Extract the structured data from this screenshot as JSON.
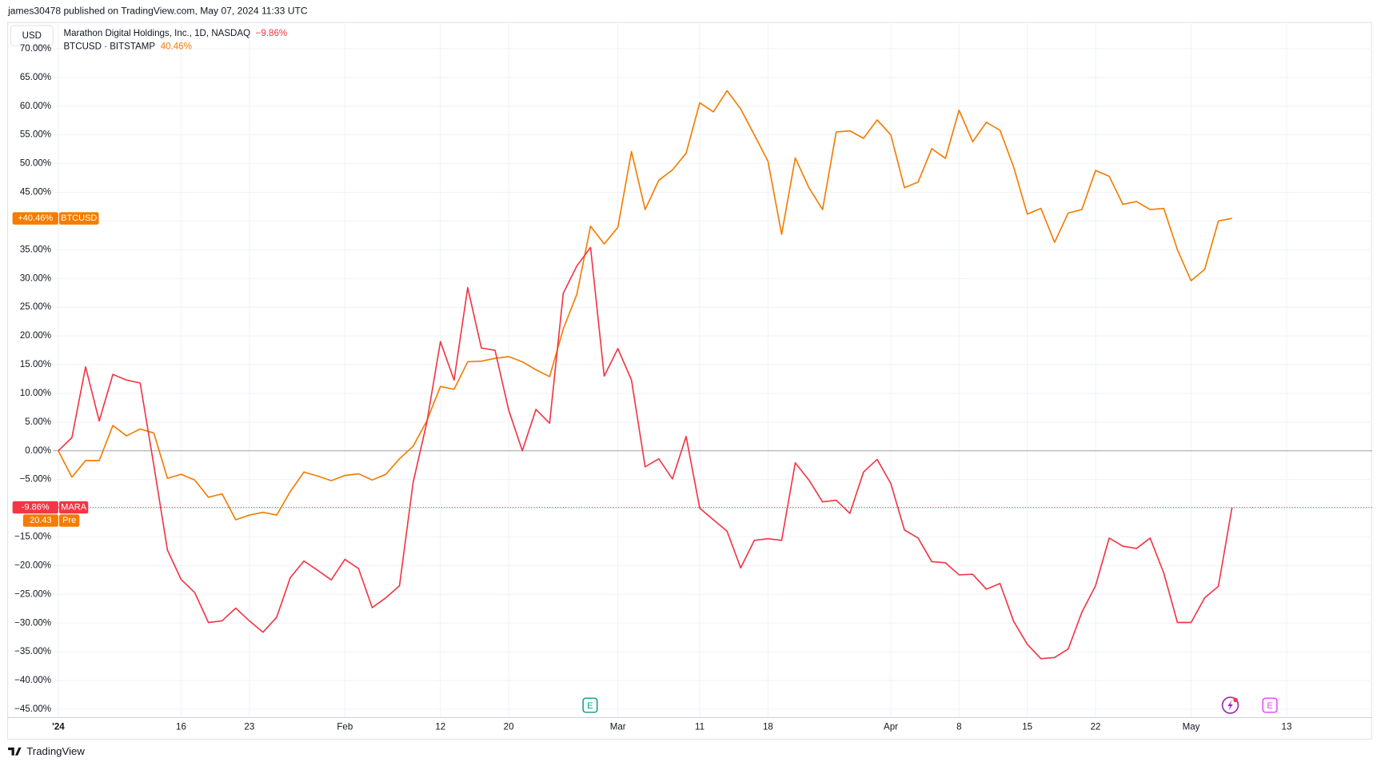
{
  "header": {
    "publisher": "james30478 published on TradingView.com, May 07, 2024 11:33 UTC",
    "currency": "USD",
    "brand": "TradingView"
  },
  "chart_data": {
    "type": "line",
    "categories": [
      "'24",
      null,
      null,
      null,
      null,
      null,
      null,
      null,
      null,
      "16",
      null,
      null,
      null,
      null,
      "23",
      null,
      null,
      null,
      null,
      null,
      null,
      "Feb",
      null,
      null,
      null,
      null,
      null,
      null,
      "12",
      null,
      null,
      null,
      null,
      "20",
      null,
      null,
      null,
      null,
      null,
      null,
      null,
      "Mar",
      null,
      null,
      null,
      null,
      null,
      "11",
      null,
      null,
      null,
      null,
      "18",
      null,
      null,
      null,
      null,
      null,
      null,
      null,
      null,
      "Apr",
      null,
      null,
      null,
      null,
      "8",
      null,
      null,
      null,
      null,
      "15",
      null,
      null,
      null,
      null,
      "22",
      null,
      null,
      null,
      null,
      null,
      null,
      "May",
      null,
      null,
      null,
      null,
      null,
      null,
      "13",
      null,
      null,
      null,
      null,
      null,
      null
    ],
    "series": [
      {
        "name": "Marathon Digital Holdings, Inc., 1D, NASDAQ",
        "legend_value": "−9.86%",
        "badge_value": "-9.86%",
        "badge_name": "MARA",
        "color": "#f23645",
        "values": [
          0,
          2.3,
          14.6,
          5.2,
          13.3,
          12.3,
          11.8,
          -2.5,
          -17.3,
          -22.4,
          -24.7,
          -29.9,
          -29.6,
          -27.4,
          -29.6,
          -31.6,
          -29.0,
          -22.1,
          -19.2,
          -20.8,
          -22.5,
          -18.9,
          -20.5,
          -27.3,
          -25.6,
          -23.5,
          -5.5,
          4.9,
          19.0,
          12.3,
          28.4,
          17.9,
          17.5,
          7.1,
          0,
          7.2,
          4.8,
          27.4,
          32.2,
          35.4,
          13.0,
          17.8,
          12.3,
          -2.8,
          -1.4,
          -4.9,
          2.5,
          -10.0,
          -12.0,
          -14.0,
          -20.4,
          -15.6,
          -15.3,
          -15.6,
          -2.1,
          -5.1,
          -8.9,
          -8.6,
          -10.9,
          -3.7,
          -1.5,
          -5.7,
          -13.8,
          -15.2,
          -19.3,
          -19.5,
          -21.6,
          -21.5,
          -24.1,
          -23.1,
          -29.7,
          -33.7,
          -36.2,
          -36.0,
          -34.5,
          -28.1,
          -23.5,
          -15.2,
          -16.6,
          -17.0,
          -15.2,
          -21.3,
          -29.9,
          -29.9,
          -25.6,
          -23.6,
          -9.86,
          null,
          null,
          null,
          null,
          null,
          null,
          null,
          null,
          null,
          null
        ]
      },
      {
        "name": "BTCUSD · BITSTAMP",
        "legend_value": "40.46%",
        "badge_value": "+40.46%",
        "badge_name": "BTCUSD",
        "color": "#f57c00",
        "values": [
          0,
          -4.6,
          -1.7,
          -1.7,
          4.4,
          2.6,
          3.8,
          3.1,
          -4.8,
          -4.1,
          -5.1,
          -8.1,
          -7.5,
          -12.0,
          -11.2,
          -10.7,
          -11.2,
          -7.1,
          -3.7,
          -4.4,
          -5.2,
          -4.3,
          -4.0,
          -5.1,
          -4.1,
          -1.4,
          0.8,
          5.2,
          11.2,
          10.7,
          15.5,
          15.6,
          16.1,
          16.4,
          15.5,
          14.1,
          12.9,
          21.2,
          27.3,
          39.1,
          36.0,
          38.9,
          52.1,
          42.0,
          47.1,
          48.9,
          51.8,
          60.6,
          59.0,
          62.7,
          59.5,
          55.0,
          50.4,
          37.7,
          51.0,
          45.8,
          42.0,
          55.5,
          55.7,
          54.4,
          57.6,
          55.0,
          45.8,
          46.8,
          52.6,
          50.9,
          59.3,
          53.8,
          57.2,
          55.8,
          49.4,
          41.2,
          42.2,
          36.3,
          41.4,
          42.0,
          48.8,
          47.8,
          42.9,
          43.4,
          42.0,
          42.2,
          35.0,
          29.6,
          31.6,
          40.0,
          40.46,
          null,
          null,
          null,
          null,
          null,
          null,
          null,
          null,
          null,
          null
        ]
      }
    ],
    "premarket": {
      "value_label": "20.43",
      "label": "Pre",
      "color": "#f57c00"
    },
    "ylim": [
      -46.5,
      72.4
    ],
    "yticks": [
      {
        "value": 70,
        "label": "70.00%"
      },
      {
        "value": 65,
        "label": "65.00%"
      },
      {
        "value": 60,
        "label": "60.00%"
      },
      {
        "value": 55,
        "label": "55.00%"
      },
      {
        "value": 50,
        "label": "50.00%"
      },
      {
        "value": 45,
        "label": "45.00%"
      },
      {
        "value": 40,
        "label": "40.00%"
      },
      {
        "value": 35,
        "label": "35.00%"
      },
      {
        "value": 30,
        "label": "30.00%"
      },
      {
        "value": 25,
        "label": "25.00%"
      },
      {
        "value": 20,
        "label": "20.00%"
      },
      {
        "value": 15,
        "label": "15.00%"
      },
      {
        "value": 10,
        "label": "10.00%"
      },
      {
        "value": 5,
        "label": "5.00%"
      },
      {
        "value": 0,
        "label": "0.00%"
      },
      {
        "value": -5,
        "label": "−5.00%"
      },
      {
        "value": -10,
        "label": "−10.00%"
      },
      {
        "value": -15,
        "label": "−15.00%"
      },
      {
        "value": -20,
        "label": "−20.00%"
      },
      {
        "value": -25,
        "label": "−25.00%"
      },
      {
        "value": -30,
        "label": "−30.00%"
      },
      {
        "value": -35,
        "label": "−35.00%"
      },
      {
        "value": -40,
        "label": "−40.00%"
      },
      {
        "value": -45,
        "label": "−45.00%"
      }
    ],
    "grid": true,
    "events": [
      {
        "label": "E",
        "color": "#089981"
      },
      {
        "label": "E",
        "color": "#e040fb"
      }
    ]
  }
}
